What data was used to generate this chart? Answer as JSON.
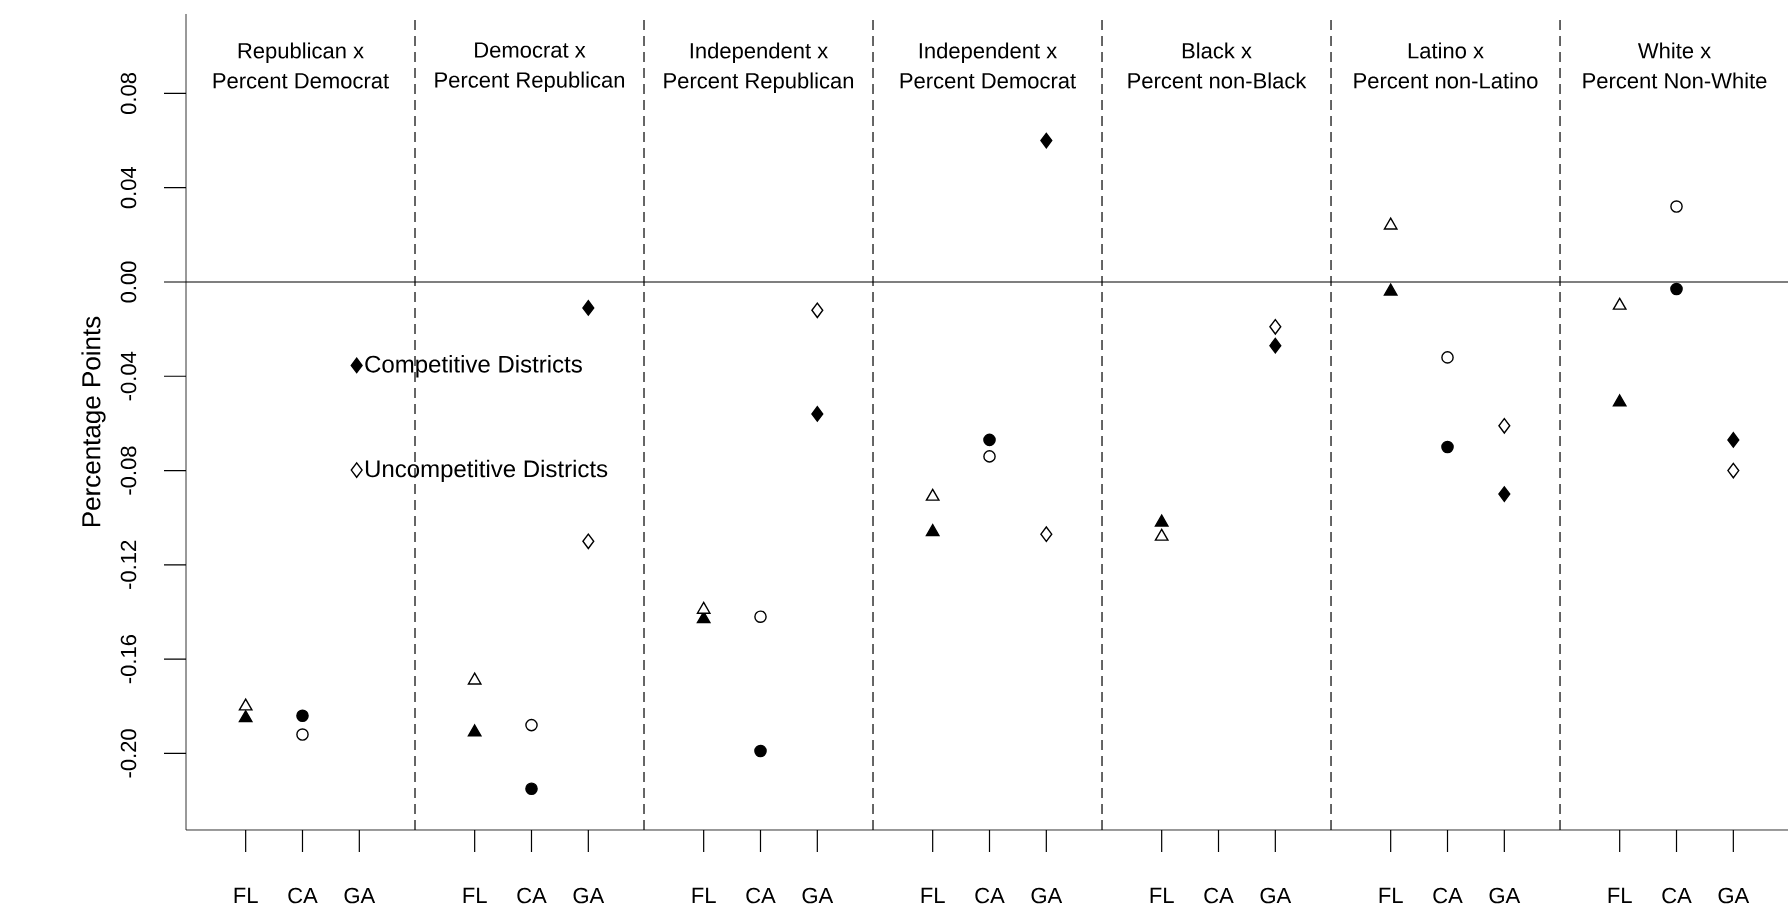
{
  "chart_data": [
    {
      "type": "scatter",
      "title": "Republican x",
      "subtitle": "Percent Democrat",
      "ylabel": "Percentage Points",
      "categories": [
        "FL",
        "CA",
        "GA"
      ],
      "ylim": [
        -0.2325,
        0.1137
      ],
      "yticks": [
        {
          "value": -0.2,
          "label": "-0.20"
        },
        {
          "value": -0.16,
          "label": "-0.16"
        },
        {
          "value": -0.12,
          "label": "-0.12"
        },
        {
          "value": -0.08,
          "label": "-0.08"
        },
        {
          "value": -0.04,
          "label": "-0.04"
        },
        {
          "value": 0,
          "label": "0.00"
        },
        {
          "value": 0.04,
          "label": "0.04"
        },
        {
          "value": 0.08,
          "label": "0.08"
        }
      ],
      "ref_lines": [
        {
          "axis": "y",
          "value": 0
        }
      ],
      "legend": "right",
      "series": [
        {
          "color": "#000000",
          "marker": "triangle",
          "values": [
            -0.185,
            null,
            null
          ]
        },
        {
          "color": "#ffffff",
          "marker": "triangle",
          "values": [
            -0.18,
            null,
            null
          ]
        },
        {
          "color": "#000000",
          "marker": "circle",
          "values": [
            null,
            -0.184,
            null
          ]
        },
        {
          "color": "#ffffff",
          "marker": "circle",
          "values": [
            null,
            -0.192,
            null
          ]
        },
        {
          "name": "Competitive Districts",
          "color": "#000000",
          "marker": "diamond",
          "values": [
            null,
            null,
            null
          ]
        },
        {
          "name": "Uncompetitive Districts",
          "color": "#ffffff",
          "marker": "diamond",
          "values": [
            null,
            null,
            null
          ]
        }
      ]
    },
    {
      "type": "scatter",
      "title": "Democrat x",
      "subtitle": "Percent Republican",
      "categories": [
        "FL",
        "CA",
        "GA"
      ],
      "ylim": [
        -0.2325,
        0.1137
      ],
      "tick_labels": "x",
      "ref_lines": [
        {
          "axis": "y",
          "value": 0
        }
      ],
      "series": [
        {
          "color": "#000000",
          "marker": "triangle",
          "values": [
            -0.191,
            null,
            null
          ]
        },
        {
          "color": "#ffffff",
          "marker": "triangle",
          "values": [
            -0.169,
            null,
            null
          ]
        },
        {
          "color": "#000000",
          "marker": "circle",
          "values": [
            null,
            -0.215,
            null
          ]
        },
        {
          "color": "#ffffff",
          "marker": "circle",
          "values": [
            null,
            -0.188,
            null
          ]
        },
        {
          "color": "#000000",
          "marker": "diamond",
          "values": [
            null,
            null,
            -0.011
          ]
        },
        {
          "color": "#ffffff",
          "marker": "diamond",
          "values": [
            null,
            null,
            -0.11
          ]
        }
      ]
    },
    {
      "type": "scatter",
      "title": "Independent x",
      "subtitle": "Percent Republican",
      "categories": [
        "FL",
        "CA",
        "GA"
      ],
      "ylim": [
        -0.2325,
        0.1137
      ],
      "tick_labels": "x",
      "ref_lines": [
        {
          "axis": "y",
          "value": 0
        }
      ],
      "series": [
        {
          "color": "#000000",
          "marker": "triangle",
          "values": [
            -0.143,
            null,
            null
          ]
        },
        {
          "color": "#ffffff",
          "marker": "triangle",
          "values": [
            -0.139,
            null,
            null
          ]
        },
        {
          "color": "#000000",
          "marker": "circle",
          "values": [
            null,
            -0.199,
            null
          ]
        },
        {
          "color": "#ffffff",
          "marker": "circle",
          "values": [
            null,
            -0.142,
            null
          ]
        },
        {
          "color": "#000000",
          "marker": "diamond",
          "values": [
            null,
            null,
            -0.056
          ]
        },
        {
          "color": "#ffffff",
          "marker": "diamond",
          "values": [
            null,
            null,
            -0.012
          ]
        }
      ]
    },
    {
      "type": "scatter",
      "title": "Independent x",
      "subtitle": "Percent Democrat",
      "categories": [
        "FL",
        "CA",
        "GA"
      ],
      "ylim": [
        -0.2325,
        0.1137
      ],
      "tick_labels": "x",
      "ref_lines": [
        {
          "axis": "y",
          "value": 0
        }
      ],
      "series": [
        {
          "color": "#000000",
          "marker": "triangle",
          "values": [
            -0.106,
            null,
            null
          ]
        },
        {
          "color": "#ffffff",
          "marker": "triangle",
          "values": [
            -0.091,
            null,
            null
          ]
        },
        {
          "color": "#000000",
          "marker": "circle",
          "values": [
            null,
            -0.067,
            null
          ]
        },
        {
          "color": "#ffffff",
          "marker": "circle",
          "values": [
            null,
            -0.074,
            null
          ]
        },
        {
          "color": "#000000",
          "marker": "diamond",
          "values": [
            null,
            null,
            0.06
          ]
        },
        {
          "color": "#ffffff",
          "marker": "diamond",
          "values": [
            null,
            null,
            -0.107
          ]
        }
      ]
    },
    {
      "type": "scatter",
      "title": "Black x",
      "subtitle": "Percent non-Black",
      "categories": [
        "FL",
        "CA",
        "GA"
      ],
      "ylim": [
        -0.2325,
        0.1137
      ],
      "tick_labels": "x",
      "ref_lines": [
        {
          "axis": "y",
          "value": 0
        }
      ],
      "series": [
        {
          "color": "#000000",
          "marker": "triangle",
          "values": [
            -0.102,
            null,
            null
          ]
        },
        {
          "color": "#ffffff",
          "marker": "triangle",
          "values": [
            -0.108,
            null,
            null
          ]
        },
        {
          "color": "#000000",
          "marker": "diamond",
          "values": [
            null,
            null,
            -0.027
          ]
        },
        {
          "color": "#ffffff",
          "marker": "diamond",
          "values": [
            null,
            null,
            -0.019
          ]
        }
      ]
    },
    {
      "type": "scatter",
      "title": "Latino x",
      "subtitle": "Percent non-Latino",
      "categories": [
        "FL",
        "CA",
        "GA"
      ],
      "ylim": [
        -0.2325,
        0.1137
      ],
      "tick_labels": "x",
      "ref_lines": [
        {
          "axis": "y",
          "value": 0
        }
      ],
      "series": [
        {
          "color": "#000000",
          "marker": "triangle",
          "values": [
            -0.004,
            null,
            null
          ]
        },
        {
          "color": "#ffffff",
          "marker": "triangle",
          "values": [
            0.024,
            null,
            null
          ]
        },
        {
          "color": "#000000",
          "marker": "circle",
          "values": [
            null,
            -0.07,
            null
          ]
        },
        {
          "color": "#ffffff",
          "marker": "circle",
          "values": [
            null,
            -0.032,
            null
          ]
        },
        {
          "color": "#000000",
          "marker": "diamond",
          "values": [
            null,
            null,
            -0.09
          ]
        },
        {
          "color": "#ffffff",
          "marker": "diamond",
          "values": [
            null,
            null,
            -0.061
          ]
        }
      ]
    },
    {
      "type": "scatter",
      "title": "White x",
      "subtitle": "Percent Non-White",
      "categories": [
        "FL",
        "CA",
        "GA"
      ],
      "ylim": [
        -0.2325,
        0.1137
      ],
      "tick_labels": "x",
      "ref_lines": [
        {
          "axis": "y",
          "value": 0
        }
      ],
      "series": [
        {
          "color": "#000000",
          "marker": "triangle",
          "values": [
            -0.051,
            null,
            null
          ]
        },
        {
          "color": "#ffffff",
          "marker": "triangle",
          "values": [
            -0.01,
            null,
            null
          ]
        },
        {
          "color": "#000000",
          "marker": "circle",
          "values": [
            null,
            -0.003,
            null
          ]
        },
        {
          "color": "#ffffff",
          "marker": "circle",
          "values": [
            null,
            0.032,
            null
          ]
        },
        {
          "color": "#000000",
          "marker": "diamond",
          "values": [
            null,
            null,
            -0.067
          ]
        },
        {
          "color": "#ffffff",
          "marker": "diamond",
          "values": [
            null,
            null,
            -0.08
          ]
        }
      ]
    }
  ]
}
